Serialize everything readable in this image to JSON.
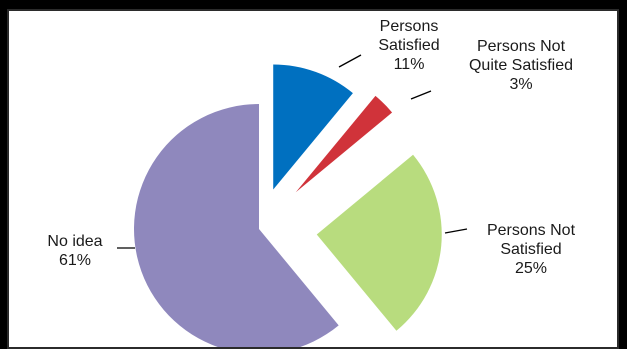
{
  "chart_data": {
    "type": "pie",
    "exploded": true,
    "start_angle_deg": 0,
    "direction": "clockwise",
    "slices": [
      {
        "label_lines": [
          "Persons",
          "Satisfied"
        ],
        "value": 11,
        "value_label": "11%",
        "color": "#0070c0"
      },
      {
        "label_lines": [
          "Persons Not",
          "Quite Satisfied"
        ],
        "value": 3,
        "value_label": "3%",
        "color": "#d0333a"
      },
      {
        "label_lines": [
          "Persons Not",
          "Satisfied"
        ],
        "value": 25,
        "value_label": "25%",
        "color": "#b8dc7e"
      },
      {
        "label_lines": [
          "No idea"
        ],
        "value": 61,
        "value_label": "61%",
        "color": "#8f88bd"
      }
    ]
  }
}
